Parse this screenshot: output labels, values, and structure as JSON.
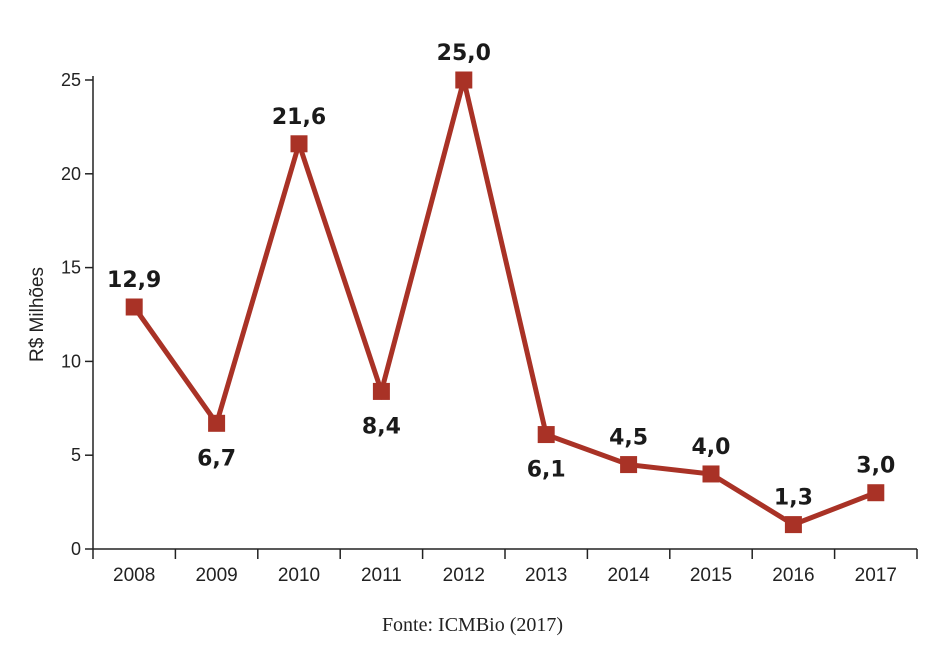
{
  "chart_data": {
    "type": "line",
    "categories": [
      "2008",
      "2009",
      "2010",
      "2011",
      "2012",
      "2013",
      "2014",
      "2015",
      "2016",
      "2017"
    ],
    "values": [
      12.9,
      6.7,
      21.6,
      8.4,
      25.0,
      6.1,
      4.5,
      4.0,
      1.3,
      3.0
    ],
    "data_labels": [
      "12,9",
      "6,7",
      "21,6",
      "8,4",
      "25,0",
      "6,1",
      "4,5",
      "4,0",
      "1,3",
      "3,0"
    ],
    "label_positions": [
      "above",
      "below",
      "above",
      "below",
      "above",
      "below",
      "above",
      "above",
      "above",
      "above"
    ],
    "ylabel": "R$ Milhões",
    "xlabel": "",
    "ylim": [
      0,
      25
    ],
    "yticks": [
      0,
      5,
      10,
      15,
      20,
      25
    ],
    "grid": false,
    "marker": "square",
    "series_color": "#a93226"
  },
  "source": "Fonte: ICMBio (2017)"
}
